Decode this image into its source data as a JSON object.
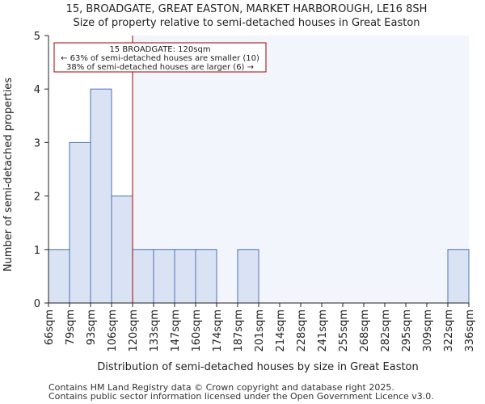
{
  "chart_data": {
    "type": "bar",
    "title": "15, BROADGATE, GREAT EASTON, MARKET HARBOROUGH, LE16 8SH",
    "subtitle": "Size of property relative to semi-detached houses in Great Easton",
    "xlabel": "Distribution of semi-detached houses by size in Great Easton",
    "ylabel": "Number of semi-detached properties",
    "x_unit": "sqm",
    "bin_edges": [
      66,
      79,
      93,
      106,
      120,
      133,
      147,
      160,
      174,
      187,
      201,
      214,
      228,
      241,
      255,
      268,
      282,
      295,
      309,
      322,
      336
    ],
    "x_tick_labels": [
      "66sqm",
      "79sqm",
      "93sqm",
      "106sqm",
      "120sqm",
      "133sqm",
      "147sqm",
      "160sqm",
      "174sqm",
      "187sqm",
      "201sqm",
      "214sqm",
      "228sqm",
      "241sqm",
      "255sqm",
      "268sqm",
      "282sqm",
      "295sqm",
      "309sqm",
      "322sqm",
      "336sqm"
    ],
    "values": [
      1,
      3,
      4,
      2,
      1,
      1,
      1,
      1,
      0,
      1,
      0,
      0,
      0,
      0,
      0,
      0,
      0,
      0,
      0,
      1
    ],
    "ylim": [
      0,
      5
    ],
    "y_ticks": [
      0,
      1,
      2,
      3,
      4,
      5
    ],
    "grid": false,
    "marker": {
      "value": 120,
      "color": "#aa0000"
    },
    "annotation": {
      "lines": [
        "15 BROADGATE: 120sqm",
        "← 63% of semi-detached houses are smaller (10)",
        "38% of semi-detached houses are larger (6) →"
      ]
    },
    "colors": {
      "bar_fill": "#dae3f3",
      "bar_edge": "#4a72b8",
      "highlight_background": "#f3f5fc",
      "marker_line": "#aa0000",
      "annotation_border": "#aa0000"
    }
  },
  "footer": {
    "line1": "Contains HM Land Registry data © Crown copyright and database right 2025.",
    "line2": "Contains public sector information licensed under the Open Government Licence v3.0."
  }
}
